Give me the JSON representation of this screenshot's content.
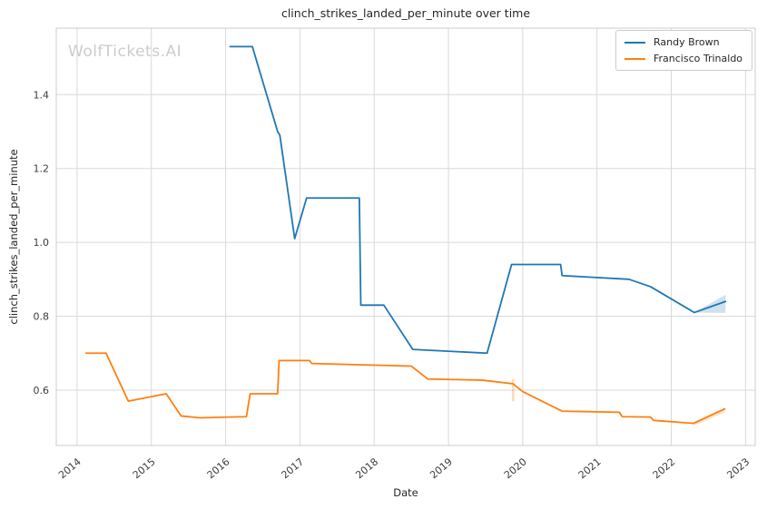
{
  "watermark": "WolfTickets.AI",
  "chart_data": {
    "type": "line",
    "title": "clinch_strikes_landed_per_minute over time",
    "xlabel": "Date",
    "ylabel": "clinch_strikes_landed_per_minute",
    "xlim": [
      2013.72,
      2023.13
    ],
    "ylim": [
      0.45,
      1.58
    ],
    "x_ticks": [
      2014,
      2015,
      2016,
      2017,
      2018,
      2019,
      2020,
      2021,
      2022,
      2023
    ],
    "y_ticks": [
      0.6,
      0.8,
      1.0,
      1.2,
      1.4
    ],
    "grid": true,
    "grid_color": "#d9d9d9",
    "spine_color": "#cccccc",
    "legend_position": "upper right",
    "series": [
      {
        "name": "Randy Brown",
        "color": "#1f77b4",
        "points": [
          [
            2016.06,
            1.53
          ],
          [
            2016.36,
            1.53
          ],
          [
            2016.7,
            1.3
          ],
          [
            2016.73,
            1.29
          ],
          [
            2016.93,
            1.01
          ],
          [
            2017.09,
            1.12
          ],
          [
            2017.8,
            1.12
          ],
          [
            2017.82,
            0.83
          ],
          [
            2018.13,
            0.83
          ],
          [
            2018.52,
            0.71
          ],
          [
            2019.52,
            0.7
          ],
          [
            2019.85,
            0.94
          ],
          [
            2020.51,
            0.94
          ],
          [
            2020.53,
            0.91
          ],
          [
            2021.43,
            0.9
          ],
          [
            2021.72,
            0.88
          ],
          [
            2022.31,
            0.81
          ],
          [
            2022.73,
            0.84
          ]
        ],
        "band": {
          "x": [
            2022.31,
            2022.73
          ],
          "lower": [
            0.81,
            0.809
          ],
          "upper": [
            0.81,
            0.858
          ]
        }
      },
      {
        "name": "Francisco Trinaldo",
        "color": "#ff7f0e",
        "points": [
          [
            2014.12,
            0.7
          ],
          [
            2014.39,
            0.7
          ],
          [
            2014.69,
            0.57
          ],
          [
            2015.2,
            0.59
          ],
          [
            2015.4,
            0.53
          ],
          [
            2015.65,
            0.525
          ],
          [
            2016.28,
            0.528
          ],
          [
            2016.33,
            0.59
          ],
          [
            2016.7,
            0.59
          ],
          [
            2016.72,
            0.68
          ],
          [
            2017.13,
            0.68
          ],
          [
            2017.16,
            0.672
          ],
          [
            2018.5,
            0.665
          ],
          [
            2018.72,
            0.63
          ],
          [
            2019.45,
            0.627
          ],
          [
            2019.87,
            0.617
          ],
          [
            2020.0,
            0.596
          ],
          [
            2020.53,
            0.543
          ],
          [
            2021.3,
            0.54
          ],
          [
            2021.34,
            0.528
          ],
          [
            2021.72,
            0.527
          ],
          [
            2021.76,
            0.518
          ],
          [
            2022.3,
            0.51
          ],
          [
            2022.72,
            0.549
          ]
        ],
        "band": {
          "x": [
            2022.3,
            2022.72
          ],
          "lower": [
            0.503,
            0.54
          ],
          "upper": [
            0.513,
            0.553
          ]
        },
        "whisker": {
          "x": 2019.87,
          "low": 0.57,
          "high": 0.63
        }
      }
    ]
  }
}
